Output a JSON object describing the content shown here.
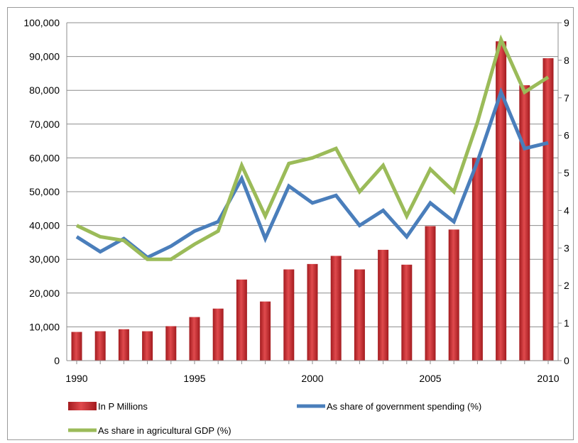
{
  "chart_data": {
    "type": "bar",
    "title": "",
    "x": [
      1990,
      1991,
      1992,
      1993,
      1994,
      1995,
      1996,
      1997,
      1998,
      1999,
      2000,
      2001,
      2002,
      2003,
      2004,
      2005,
      2006,
      2007,
      2008,
      2009,
      2010
    ],
    "x_tick_labels": [
      "1990",
      "1995",
      "2000",
      "2005",
      "2010"
    ],
    "y_left": {
      "range": [
        0,
        100000
      ],
      "tick_labels": [
        "0",
        "10,000",
        "20,000",
        "30,000",
        "40,000",
        "50,000",
        "60,000",
        "70,000",
        "80,000",
        "90,000",
        "100,000"
      ]
    },
    "y_right": {
      "range": [
        0,
        9
      ],
      "tick_labels": [
        "0",
        "1",
        "2",
        "3",
        "4",
        "5",
        "6",
        "7",
        "8",
        "9"
      ]
    },
    "grid": true,
    "legend_position": "bottom",
    "series": [
      {
        "name": "In P Millions",
        "type": "bar",
        "axis": "left",
        "color": "#c0282c",
        "values": [
          8500,
          8700,
          9300,
          8700,
          10200,
          12900,
          15400,
          24000,
          17500,
          27000,
          28600,
          31000,
          27000,
          32800,
          28400,
          39800,
          38800,
          60000,
          94500,
          81500,
          89500
        ]
      },
      {
        "name": "As share of government spending (%)",
        "type": "line",
        "axis": "right",
        "color": "#4a7ebb",
        "values": [
          3.3,
          2.9,
          3.25,
          2.75,
          3.05,
          3.45,
          3.7,
          4.85,
          3.25,
          4.65,
          4.2,
          4.4,
          3.6,
          4.0,
          3.3,
          4.2,
          3.7,
          5.3,
          7.15,
          5.65,
          5.8
        ]
      },
      {
        "name": "As share in agricultural GDP (%)",
        "type": "line",
        "axis": "right",
        "color": "#9bbb59",
        "values": [
          3.6,
          3.3,
          3.2,
          2.7,
          2.7,
          3.1,
          3.45,
          5.2,
          3.85,
          5.25,
          5.4,
          5.65,
          4.5,
          5.2,
          3.85,
          5.1,
          4.5,
          6.35,
          8.55,
          7.15,
          7.55
        ]
      }
    ]
  }
}
